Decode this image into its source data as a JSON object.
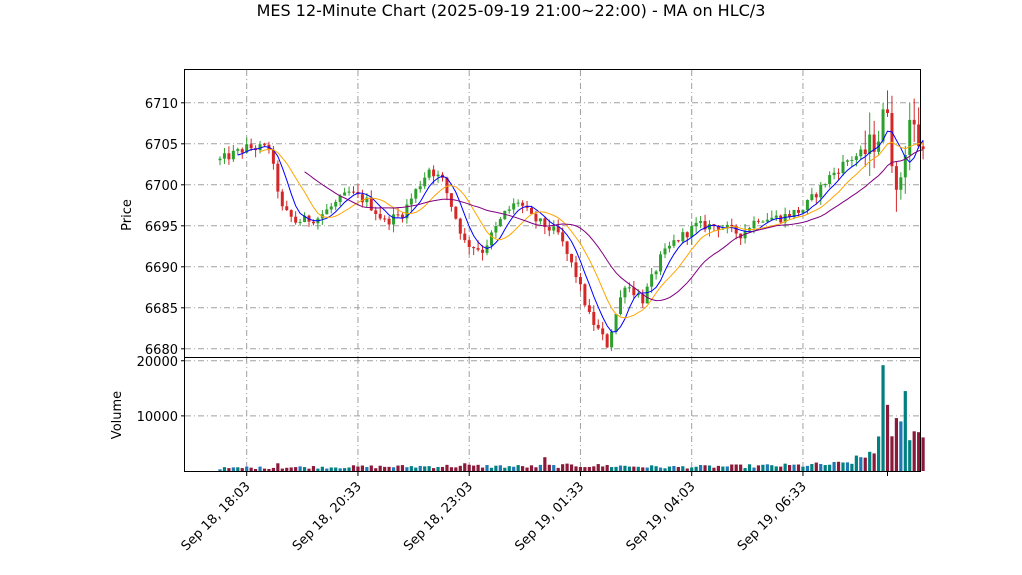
{
  "chart_data": {
    "type": "candlestick",
    "title": "MES 12-Minute Chart (2025-09-19 21:00~22:00) - MA on HLC/3",
    "price_panel": {
      "ylabel": "Price",
      "ylim": [
        6679,
        6714
      ],
      "yticks": [
        6680,
        6685,
        6690,
        6695,
        6700,
        6705,
        6710
      ]
    },
    "volume_panel": {
      "ylabel": "Volume",
      "ylim": [
        0,
        20500
      ],
      "yticks": [
        10000,
        20000
      ],
      "ytick_labels": [
        "10000",
        "20000"
      ]
    },
    "x_ticks": [
      {
        "label": "Sep 18, 18:03",
        "index": 6
      },
      {
        "label": "Sep 18, 20:33",
        "index": 31
      },
      {
        "label": "Sep 18, 23:03",
        "index": 56
      },
      {
        "label": "Sep 19, 01:33",
        "index": 81
      },
      {
        "label": "Sep 19, 04:03",
        "index": 106
      },
      {
        "label": "Sep 19, 06:33",
        "index": 131
      }
    ],
    "grid": true,
    "colors": {
      "up": "#2ca02c",
      "down": "#d62728",
      "ma_fast": "#0000ff",
      "ma_mid": "#ffa500",
      "ma_slow": "#800080",
      "volume_up": "#1f77b4",
      "volume_down": "#8b1a3a",
      "volume_alt": "#008080",
      "grid": "#a0a0a0"
    },
    "anchors": [
      [
        0,
        6703
      ],
      [
        6,
        6704.5
      ],
      [
        11,
        6704.5
      ],
      [
        14,
        6697
      ],
      [
        17,
        6695.5
      ],
      [
        22,
        6696
      ],
      [
        29,
        6699
      ],
      [
        33,
        6698
      ],
      [
        37,
        6695.5
      ],
      [
        41,
        6696.5
      ],
      [
        47,
        6702
      ],
      [
        50,
        6700.5
      ],
      [
        55,
        6693
      ],
      [
        59,
        6692
      ],
      [
        64,
        6696.5
      ],
      [
        67,
        6698
      ],
      [
        70,
        6696
      ],
      [
        76,
        6694
      ],
      [
        80,
        6689
      ],
      [
        83,
        6684
      ],
      [
        87,
        6680.5
      ],
      [
        91,
        6688
      ],
      [
        95,
        6686
      ],
      [
        99,
        6691
      ],
      [
        102,
        6693
      ],
      [
        107,
        6695
      ],
      [
        112,
        6695
      ],
      [
        117,
        6694
      ],
      [
        121,
        6696
      ],
      [
        126,
        6696
      ],
      [
        131,
        6697
      ],
      [
        137,
        6701
      ],
      [
        141,
        6703
      ],
      [
        145,
        6704
      ],
      [
        148,
        6706
      ],
      [
        150,
        6710
      ],
      [
        152,
        6698
      ],
      [
        155,
        6708
      ],
      [
        158,
        6704
      ]
    ],
    "volume_anchors": [
      [
        0,
        500
      ],
      [
        20,
        700
      ],
      [
        40,
        800
      ],
      [
        55,
        900
      ],
      [
        70,
        800
      ],
      [
        80,
        1000
      ],
      [
        90,
        900
      ],
      [
        100,
        700
      ],
      [
        110,
        800
      ],
      [
        120,
        900
      ],
      [
        130,
        1000
      ],
      [
        140,
        1300
      ],
      [
        145,
        2500
      ],
      [
        148,
        5500
      ],
      [
        150,
        8000
      ],
      [
        153,
        7500
      ],
      [
        156,
        6500
      ],
      [
        158,
        6500
      ]
    ],
    "volume_spikes": [
      [
        6,
        800
      ],
      [
        13,
        1400
      ],
      [
        55,
        1400
      ],
      [
        73,
        2500
      ],
      [
        149,
        19200
      ],
      [
        150,
        12000
      ],
      [
        152,
        9600
      ],
      [
        154,
        14500
      ],
      [
        156,
        7200
      ]
    ],
    "ma_periods": [
      5,
      10,
      20
    ]
  }
}
